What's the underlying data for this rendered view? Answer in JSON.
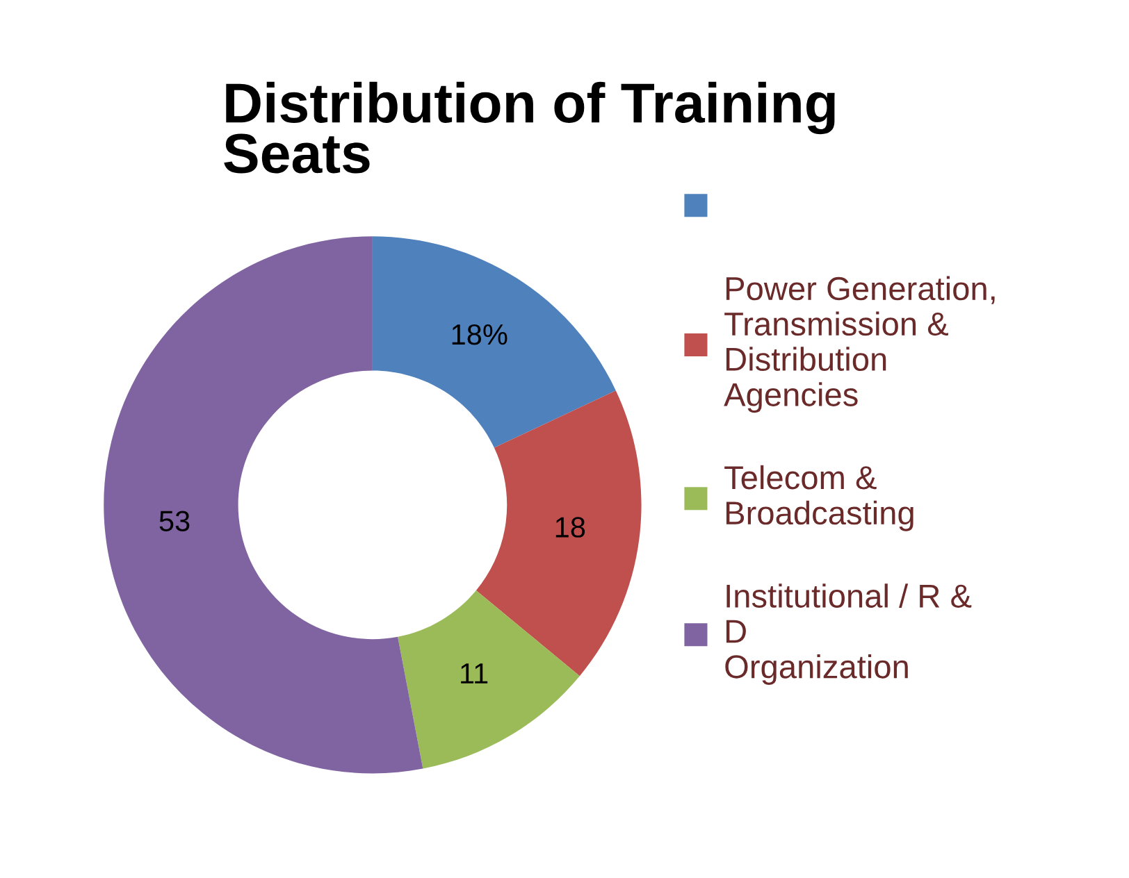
{
  "chart_data": {
    "type": "donut",
    "title": "Distribution of Training\nSeats",
    "categories": [
      null,
      "Power Generation,\nTransmission &\nDistribution\nAgencies",
      "Telecom &\nBroadcasting",
      "Institutional / R &\nD\nOrganization"
    ],
    "values": [
      18,
      18,
      11,
      53
    ],
    "colors": [
      "#4f81bd",
      "#c0504d",
      "#9bbb59",
      "#8064a2"
    ],
    "value_labels": [
      "18%",
      "18",
      "11",
      "53"
    ],
    "legend": "right"
  }
}
